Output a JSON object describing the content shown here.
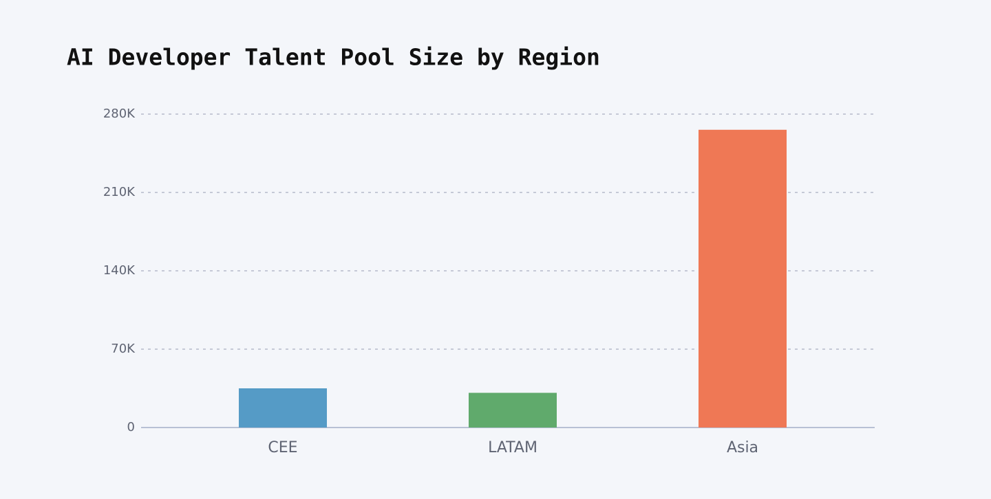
{
  "chart_data": {
    "type": "bar",
    "title": "AI Developer Talent Pool Size by Region",
    "categories": [
      "CEE",
      "LATAM",
      "Asia"
    ],
    "values": [
      35000,
      31000,
      266000
    ],
    "colors": [
      "#559bc6",
      "#60aa6c",
      "#ef7855"
    ],
    "ylim": [
      0,
      280000
    ],
    "yticks": [
      0,
      {
        "value": 70000,
        "label": "70K"
      },
      {
        "value": 140000,
        "label": "140K"
      },
      {
        "value": 210000,
        "label": "210K"
      },
      {
        "value": 280000,
        "label": "280K"
      }
    ],
    "grid": true
  }
}
